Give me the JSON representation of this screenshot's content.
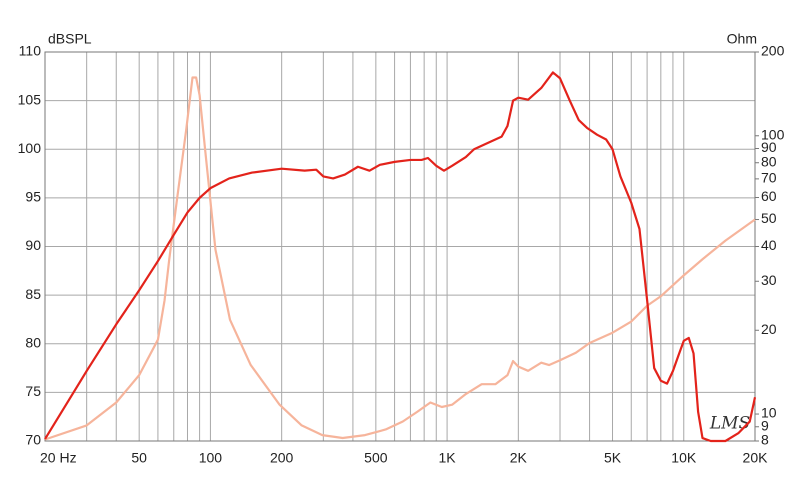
{
  "chart_data": {
    "type": "line",
    "ylabel": "dBSPL",
    "y2label": "Ohm",
    "watermark": "LMS",
    "xlog": true,
    "y2log": true,
    "grid": true,
    "xlim": [
      20,
      20000
    ],
    "xticks": [
      {
        "value": 20,
        "label": "20 Hz"
      },
      50,
      100,
      200,
      500,
      {
        "value": 1000,
        "label": "1K"
      },
      {
        "value": 2000,
        "label": "2K"
      },
      {
        "value": 5000,
        "label": "5K"
      },
      {
        "value": 10000,
        "label": "10K"
      },
      {
        "value": 20000,
        "label": "20K"
      }
    ],
    "xgrid": [
      30,
      40,
      60,
      70,
      80,
      90,
      300,
      400,
      600,
      700,
      800,
      900,
      3000,
      4000,
      6000,
      7000,
      8000,
      9000
    ],
    "ylim": [
      70,
      110
    ],
    "yticks": [
      70,
      75,
      80,
      85,
      90,
      95,
      100,
      105,
      110
    ],
    "y2lim": [
      8,
      200
    ],
    "y2ticks": [
      8,
      9,
      10,
      20,
      30,
      40,
      50,
      60,
      70,
      80,
      90,
      100,
      200
    ],
    "series": [
      {
        "color": "#e3231b",
        "x": [
          20,
          30,
          40,
          50,
          60,
          70,
          80,
          90,
          100,
          120,
          150,
          200,
          250,
          280,
          300,
          330,
          370,
          420,
          470,
          520,
          600,
          700,
          780,
          830,
          900,
          970,
          1050,
          1200,
          1300,
          1500,
          1700,
          1800,
          1900,
          2000,
          2200,
          2500,
          2800,
          3000,
          3300,
          3600,
          3900,
          4300,
          4700,
          5000,
          5400,
          6000,
          6500,
          7000,
          7500,
          8000,
          8500,
          9000,
          9500,
          10000,
          10500,
          11000,
          11500,
          12000,
          13000,
          15000,
          17000,
          19000,
          20000
        ],
        "values": [
          70.2,
          77.2,
          82,
          85.5,
          88.5,
          91.2,
          93.5,
          95,
          96,
          97,
          97.6,
          98,
          97.8,
          97.9,
          97.2,
          97,
          97.4,
          98.2,
          97.8,
          98.4,
          98.7,
          98.9,
          98.9,
          99.1,
          98.3,
          97.8,
          98.3,
          99.2,
          100,
          100.7,
          101.3,
          102.4,
          105,
          105.3,
          105.1,
          106.3,
          107.9,
          107.3,
          105,
          103,
          102.2,
          101.5,
          101,
          100,
          97.2,
          94.5,
          91.8,
          84.5,
          77.5,
          76.2,
          75.9,
          77.2,
          78.8,
          80.3,
          80.6,
          79,
          73,
          70.3,
          70,
          70,
          70.8,
          72,
          74.5
        ]
      },
      {
        "color": "#f6b49b",
        "axis": "y2",
        "x": [
          20,
          30,
          40,
          50,
          60,
          64,
          67,
          72.6,
          79,
          84,
          87,
          90,
          95,
          105,
          121,
          148,
          196,
          243,
          297,
          362,
          450,
          550,
          650,
          750,
          850,
          950,
          1050,
          1200,
          1400,
          1600,
          1800,
          1900,
          2000,
          2200,
          2500,
          2700,
          3000,
          3500,
          4000,
          5000,
          6000,
          7000,
          8000,
          10000,
          12000,
          15000,
          20000
        ],
        "values": [
          8.1,
          9.1,
          11,
          13.8,
          18.5,
          25.6,
          36,
          61,
          105,
          162,
          162,
          140,
          89,
          39,
          21.8,
          15,
          10.8,
          9.1,
          8.4,
          8.2,
          8.4,
          8.8,
          9.4,
          10.2,
          11,
          10.6,
          10.8,
          11.8,
          12.8,
          12.8,
          13.8,
          15.5,
          14.8,
          14.3,
          15.3,
          15,
          15.6,
          16.6,
          18,
          19.6,
          21.5,
          24.5,
          26.5,
          31.5,
          36,
          42,
          50
        ]
      }
    ]
  }
}
